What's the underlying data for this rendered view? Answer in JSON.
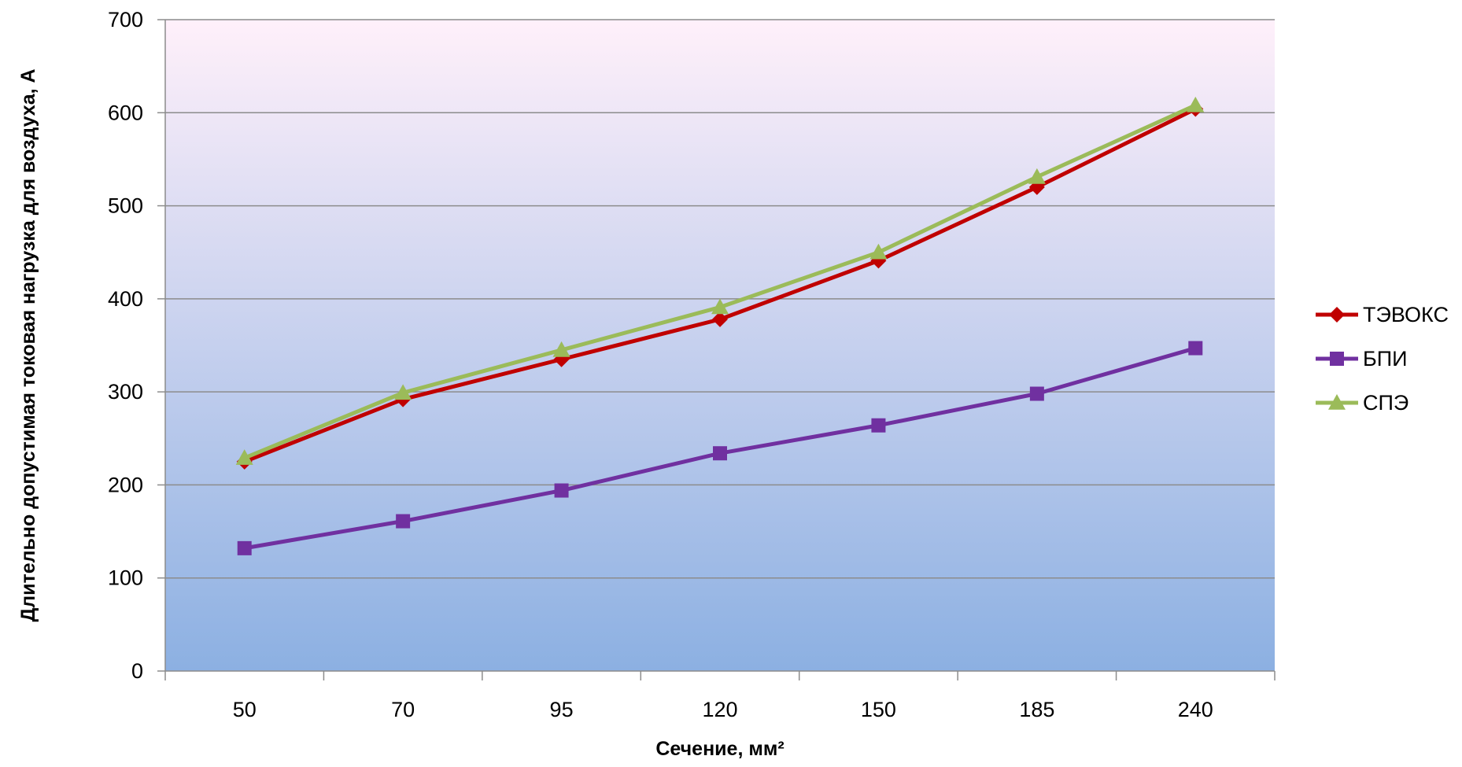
{
  "chart_data": {
    "type": "line",
    "categories": [
      "50",
      "70",
      "95",
      "120",
      "150",
      "185",
      "240"
    ],
    "series": [
      {
        "name": "ТЭВОКС",
        "values": [
          225,
          292,
          335,
          378,
          441,
          520,
          604
        ],
        "color": "#C00000",
        "marker": "diamond"
      },
      {
        "name": "БПИ",
        "values": [
          132,
          161,
          194,
          234,
          264,
          298,
          347
        ],
        "color": "#7030A0",
        "marker": "square"
      },
      {
        "name": "СПЭ",
        "values": [
          229,
          299,
          345,
          391,
          450,
          531,
          608
        ],
        "color": "#9BBB59",
        "marker": "triangle"
      }
    ],
    "xlabel": "Сечение, мм²",
    "ylabel": "Длительно допустимая токовая нагрузка для воздуха, А",
    "ylim": [
      0,
      700
    ],
    "yticks": [
      "0",
      "100",
      "200",
      "300",
      "400",
      "500",
      "600",
      "700"
    ],
    "grid": true,
    "legend": "right",
    "plot_background": {
      "top": "#FFF0FA",
      "bottom": "#8CB0E2"
    }
  }
}
